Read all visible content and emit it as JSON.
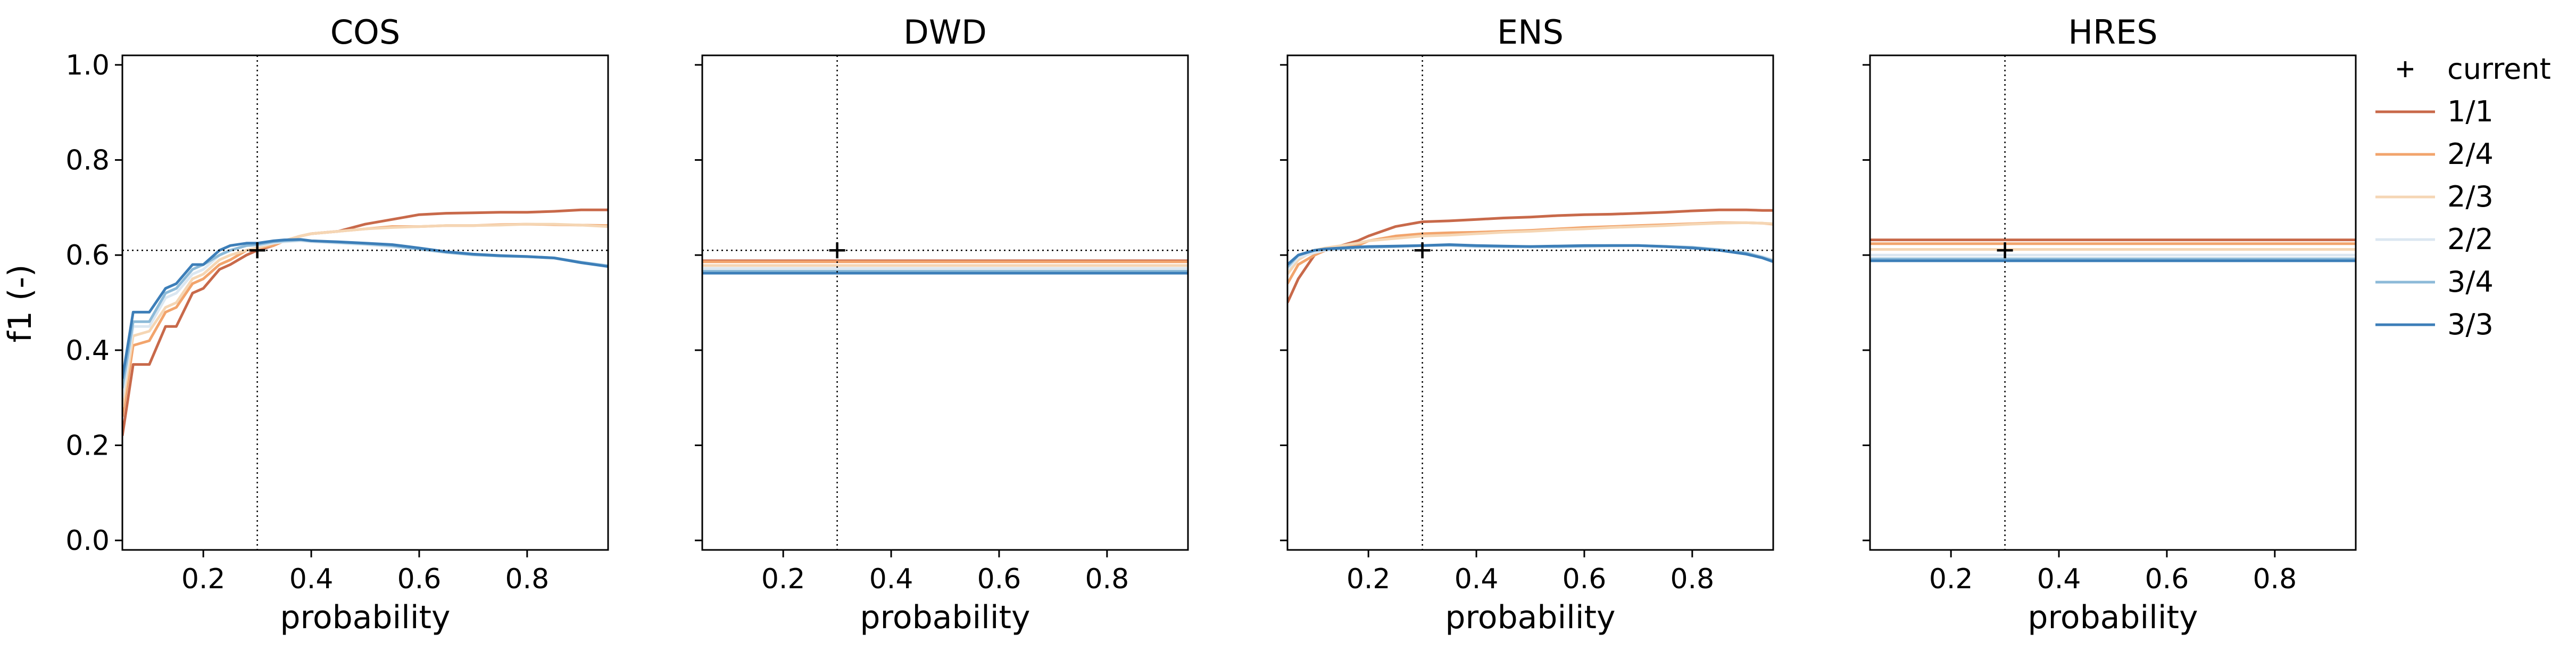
{
  "chart_data": {
    "type": "line",
    "ylabel": "f1 (-)",
    "xlabel": "probability",
    "xlim": [
      0.05,
      0.95
    ],
    "ylim": [
      -0.02,
      1.02
    ],
    "x_ticks": [
      "0.2",
      "0.4",
      "0.6",
      "0.8"
    ],
    "x_tick_values": [
      0.2,
      0.4,
      0.6,
      0.8
    ],
    "y_ticks": [
      "0.0",
      "0.2",
      "0.4",
      "0.6",
      "0.8",
      "1.0"
    ],
    "y_tick_values": [
      0.0,
      0.2,
      0.4,
      0.6,
      0.8,
      1.0
    ],
    "grid": false,
    "legend_position": "right-outside-top",
    "current_marker": {
      "label": "current",
      "x": 0.3,
      "y": 0.61
    },
    "series_styles": [
      {
        "name": "1/1",
        "color": "#c8694a"
      },
      {
        "name": "2/4",
        "color": "#f2a46c"
      },
      {
        "name": "2/3",
        "color": "#f5d6b4"
      },
      {
        "name": "2/2",
        "color": "#dbe7f1"
      },
      {
        "name": "3/4",
        "color": "#8cbad8"
      },
      {
        "name": "3/3",
        "color": "#3c7eb8"
      }
    ],
    "panels": [
      {
        "title": "COS",
        "x": [
          0.05,
          0.07,
          0.1,
          0.13,
          0.15,
          0.18,
          0.2,
          0.23,
          0.25,
          0.28,
          0.3,
          0.33,
          0.35,
          0.38,
          0.4,
          0.45,
          0.5,
          0.55,
          0.6,
          0.65,
          0.7,
          0.75,
          0.8,
          0.85,
          0.9,
          0.95
        ],
        "series": [
          {
            "name": "1/1",
            "values": [
              0.22,
              0.37,
              0.37,
              0.45,
              0.45,
              0.52,
              0.53,
              0.57,
              0.58,
              0.6,
              0.61,
              0.62,
              0.63,
              0.64,
              0.645,
              0.65,
              0.665,
              0.675,
              0.685,
              0.688,
              0.689,
              0.69,
              0.69,
              0.692,
              0.695,
              0.695
            ]
          },
          {
            "name": "2/4",
            "values": [
              0.26,
              0.41,
              0.42,
              0.48,
              0.49,
              0.54,
              0.55,
              0.58,
              0.59,
              0.61,
              0.615,
              0.62,
              0.63,
              0.64,
              0.645,
              0.65,
              0.655,
              0.66,
              0.66,
              0.662,
              0.662,
              0.664,
              0.665,
              0.664,
              0.663,
              0.662
            ]
          },
          {
            "name": "2/3",
            "values": [
              0.28,
              0.43,
              0.44,
              0.49,
              0.5,
              0.55,
              0.56,
              0.59,
              0.6,
              0.61,
              0.615,
              0.625,
              0.63,
              0.64,
              0.645,
              0.65,
              0.655,
              0.658,
              0.66,
              0.662,
              0.662,
              0.663,
              0.665,
              0.665,
              0.663,
              0.66
            ]
          },
          {
            "name": "2/2",
            "values": [
              0.3,
              0.45,
              0.45,
              0.51,
              0.52,
              0.56,
              0.57,
              0.6,
              0.61,
              0.62,
              0.62,
              0.625,
              0.628,
              0.63,
              0.628,
              0.625,
              0.622,
              0.618,
              0.612,
              0.605,
              0.6,
              0.598,
              0.596,
              0.593,
              0.585,
              0.578
            ]
          },
          {
            "name": "3/4",
            "values": [
              0.32,
              0.46,
              0.46,
              0.52,
              0.53,
              0.57,
              0.58,
              0.6,
              0.61,
              0.62,
              0.622,
              0.628,
              0.63,
              0.632,
              0.63,
              0.627,
              0.624,
              0.62,
              0.613,
              0.606,
              0.601,
              0.598,
              0.597,
              0.594,
              0.585,
              0.577
            ]
          },
          {
            "name": "3/3",
            "values": [
              0.34,
              0.48,
              0.48,
              0.53,
              0.54,
              0.58,
              0.58,
              0.61,
              0.62,
              0.625,
              0.625,
              0.63,
              0.632,
              0.633,
              0.63,
              0.628,
              0.625,
              0.622,
              0.615,
              0.607,
              0.602,
              0.599,
              0.597,
              0.594,
              0.584,
              0.576
            ]
          }
        ]
      },
      {
        "title": "DWD",
        "x": [
          0.05,
          0.95
        ],
        "series": [
          {
            "name": "1/1",
            "values": [
              0.588,
              0.588
            ]
          },
          {
            "name": "2/4",
            "values": [
              0.586,
              0.586
            ]
          },
          {
            "name": "2/3",
            "values": [
              0.578,
              0.578
            ]
          },
          {
            "name": "2/2",
            "values": [
              0.572,
              0.572
            ]
          },
          {
            "name": "3/4",
            "values": [
              0.566,
              0.566
            ]
          },
          {
            "name": "3/3",
            "values": [
              0.562,
              0.562
            ]
          }
        ]
      },
      {
        "title": "ENS",
        "x": [
          0.05,
          0.07,
          0.1,
          0.12,
          0.15,
          0.18,
          0.2,
          0.25,
          0.3,
          0.35,
          0.4,
          0.45,
          0.5,
          0.55,
          0.6,
          0.65,
          0.7,
          0.75,
          0.8,
          0.85,
          0.9,
          0.93,
          0.95
        ],
        "series": [
          {
            "name": "1/1",
            "values": [
              0.5,
              0.55,
              0.6,
              0.61,
              0.62,
              0.63,
              0.64,
              0.66,
              0.67,
              0.672,
              0.675,
              0.678,
              0.68,
              0.683,
              0.685,
              0.686,
              0.688,
              0.69,
              0.693,
              0.695,
              0.695,
              0.694,
              0.694
            ]
          },
          {
            "name": "2/4",
            "values": [
              0.54,
              0.58,
              0.6,
              0.61,
              0.615,
              0.62,
              0.63,
              0.64,
              0.645,
              0.647,
              0.648,
              0.65,
              0.652,
              0.655,
              0.658,
              0.66,
              0.662,
              0.664,
              0.666,
              0.668,
              0.668,
              0.667,
              0.665
            ]
          },
          {
            "name": "2/3",
            "values": [
              0.56,
              0.59,
              0.61,
              0.615,
              0.62,
              0.625,
              0.63,
              0.635,
              0.64,
              0.642,
              0.645,
              0.648,
              0.65,
              0.653,
              0.655,
              0.658,
              0.66,
              0.662,
              0.665,
              0.667,
              0.668,
              0.667,
              0.666
            ]
          },
          {
            "name": "2/2",
            "values": [
              0.57,
              0.595,
              0.605,
              0.61,
              0.612,
              0.614,
              0.615,
              0.618,
              0.62,
              0.62,
              0.618,
              0.618,
              0.617,
              0.617,
              0.618,
              0.619,
              0.62,
              0.619,
              0.617,
              0.612,
              0.605,
              0.597,
              0.59
            ]
          },
          {
            "name": "3/4",
            "values": [
              0.575,
              0.6,
              0.61,
              0.612,
              0.614,
              0.616,
              0.617,
              0.618,
              0.62,
              0.621,
              0.619,
              0.618,
              0.618,
              0.618,
              0.619,
              0.62,
              0.62,
              0.618,
              0.616,
              0.611,
              0.604,
              0.595,
              0.588
            ]
          },
          {
            "name": "3/3",
            "values": [
              0.58,
              0.6,
              0.61,
              0.613,
              0.615,
              0.617,
              0.618,
              0.619,
              0.62,
              0.622,
              0.62,
              0.619,
              0.618,
              0.619,
              0.62,
              0.62,
              0.62,
              0.618,
              0.615,
              0.61,
              0.602,
              0.594,
              0.586
            ]
          }
        ]
      },
      {
        "title": "HRES",
        "x": [
          0.05,
          0.95
        ],
        "series": [
          {
            "name": "1/1",
            "values": [
              0.632,
              0.632
            ]
          },
          {
            "name": "2/4",
            "values": [
              0.624,
              0.624
            ]
          },
          {
            "name": "2/3",
            "values": [
              0.612,
              0.612
            ]
          },
          {
            "name": "2/2",
            "values": [
              0.6,
              0.6
            ]
          },
          {
            "name": "3/4",
            "values": [
              0.592,
              0.592
            ]
          },
          {
            "name": "3/3",
            "values": [
              0.588,
              0.588
            ]
          }
        ]
      }
    ]
  }
}
